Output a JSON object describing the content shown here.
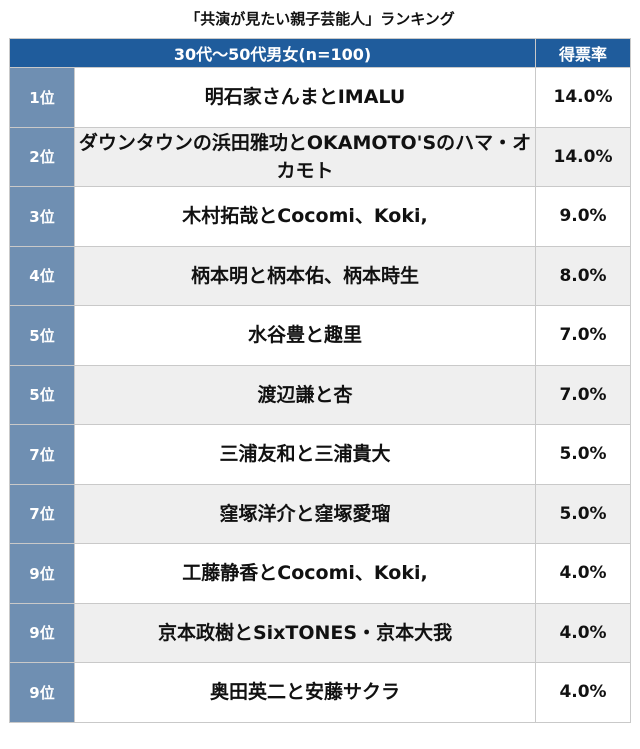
{
  "title": "「共演が見たい親子芸能人」ランキング",
  "header": {
    "group": "30代〜50代男女(n=100)",
    "rate": "得票率"
  },
  "chart_data": {
    "type": "table",
    "columns": [
      "",
      "30代〜50代男女(n=100)",
      "得票率"
    ],
    "rows": [
      {
        "rank": "1位",
        "name": "明石家さんまとIMALU",
        "rate": "14.0%"
      },
      {
        "rank": "2位",
        "name": "ダウンタウンの浜田雅功とOKAMOTO'Sのハマ・オカモト",
        "rate": "14.0%"
      },
      {
        "rank": "3位",
        "name": "木村拓哉とCocomi、Koki,",
        "rate": "9.0%"
      },
      {
        "rank": "4位",
        "name": "柄本明と柄本佑、柄本時生",
        "rate": "8.0%"
      },
      {
        "rank": "5位",
        "name": "水谷豊と趣里",
        "rate": "7.0%"
      },
      {
        "rank": "5位",
        "name": "渡辺謙と杏",
        "rate": "7.0%"
      },
      {
        "rank": "7位",
        "name": "三浦友和と三浦貴大",
        "rate": "5.0%"
      },
      {
        "rank": "7位",
        "name": "窪塚洋介と窪塚愛瑠",
        "rate": "5.0%"
      },
      {
        "rank": "9位",
        "name": "工藤静香とCocomi、Koki,",
        "rate": "4.0%"
      },
      {
        "rank": "9位",
        "name": "京本政樹とSixTONES・京本大我",
        "rate": "4.0%"
      },
      {
        "rank": "9位",
        "name": "奥田英二と安藤サクラ",
        "rate": "4.0%"
      }
    ]
  },
  "colors": {
    "header_bg": "#1f5c9c",
    "rank_bg": "#6f8fb2",
    "row_alt_bg": "#efefef"
  }
}
